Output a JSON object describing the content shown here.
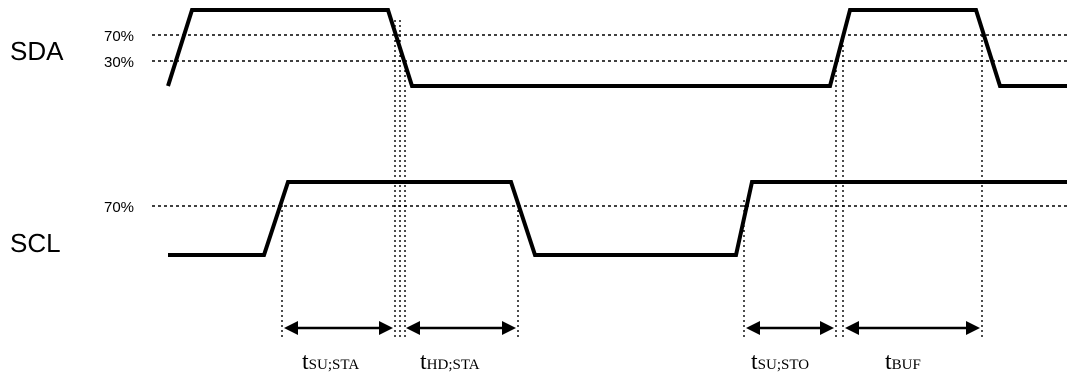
{
  "signals": {
    "sda": "SDA",
    "scl": "SCL"
  },
  "thresholds": {
    "sda_high": "70%",
    "sda_low": "30%",
    "scl_high": "70%"
  },
  "timings": {
    "su_sta": {
      "main": "t",
      "sub": "SU;STA"
    },
    "hd_sta": {
      "main": "t",
      "sub": "HD;STA"
    },
    "su_sto": {
      "main": "t",
      "sub": "SU;STO"
    },
    "buf": {
      "main": "t",
      "sub": "BUF"
    }
  }
}
